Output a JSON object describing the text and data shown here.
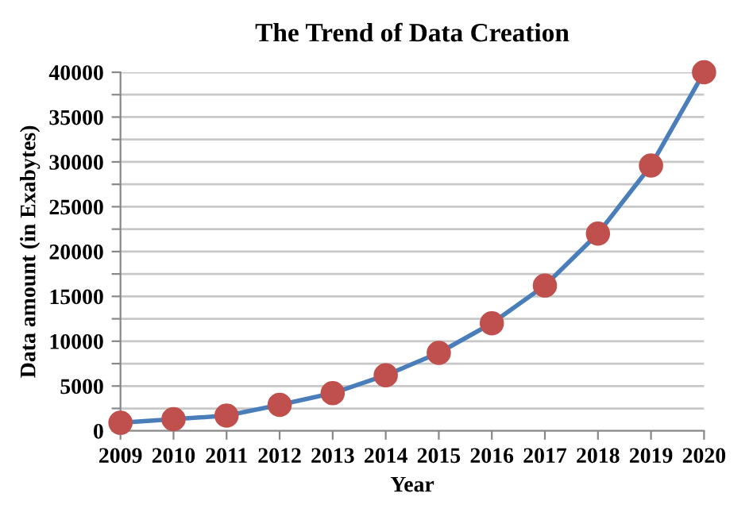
{
  "chart_data": {
    "type": "line",
    "title": "The Trend of Data Creation",
    "xlabel": "Year",
    "ylabel": "Data amount (in Exabytes)",
    "categories": [
      "2009",
      "2010",
      "2011",
      "2012",
      "2013",
      "2014",
      "2015",
      "2016",
      "2017",
      "2018",
      "2019",
      "2020"
    ],
    "series": [
      {
        "color": "#4a7ebb",
        "colors": [
          "#c0504d",
          "#c0504d",
          "#c0504d",
          "#c0504d",
          "#c0504d",
          "#c0504d",
          "#c0504d",
          "#c0504d",
          "#c0504d",
          "#c0504d",
          "#c0504d",
          "#c0504d"
        ],
        "values": [
          900,
          1300,
          1700,
          2900,
          4200,
          6200,
          8700,
          12000,
          16200,
          22000,
          29600,
          40000
        ]
      }
    ],
    "ylim": [
      0,
      40000
    ],
    "yticks": [
      0,
      {
        "value": 2500,
        "label": null
      },
      5000,
      {
        "value": 7500,
        "label": null
      },
      10000,
      {
        "value": 12500,
        "label": null
      },
      15000,
      {
        "value": 17500,
        "label": null
      },
      20000,
      {
        "value": 22500,
        "label": null
      },
      25000,
      {
        "value": 27500,
        "label": null
      },
      30000,
      {
        "value": 32500,
        "label": null
      },
      35000,
      {
        "value": 37500,
        "label": null
      },
      40000
    ],
    "grid": "y",
    "marker": "circle",
    "line_style": "solid"
  }
}
